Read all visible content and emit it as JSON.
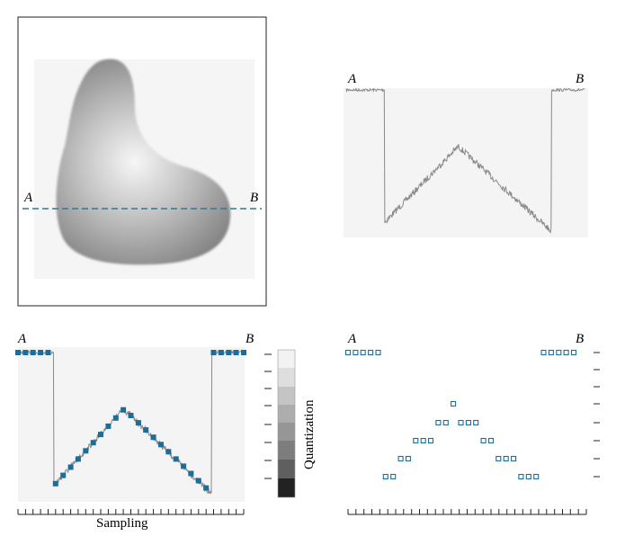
{
  "labels": {
    "point_a": "A",
    "point_b": "B",
    "sampling": "Sampling",
    "quantization": "Quantization"
  },
  "colors": {
    "scan_line": "#2c7a9c",
    "sample_marker": "#1c6e99",
    "signal": "#8a8a8a",
    "frame": "#222222"
  },
  "quantization_levels": 8,
  "sample_count": 31
}
